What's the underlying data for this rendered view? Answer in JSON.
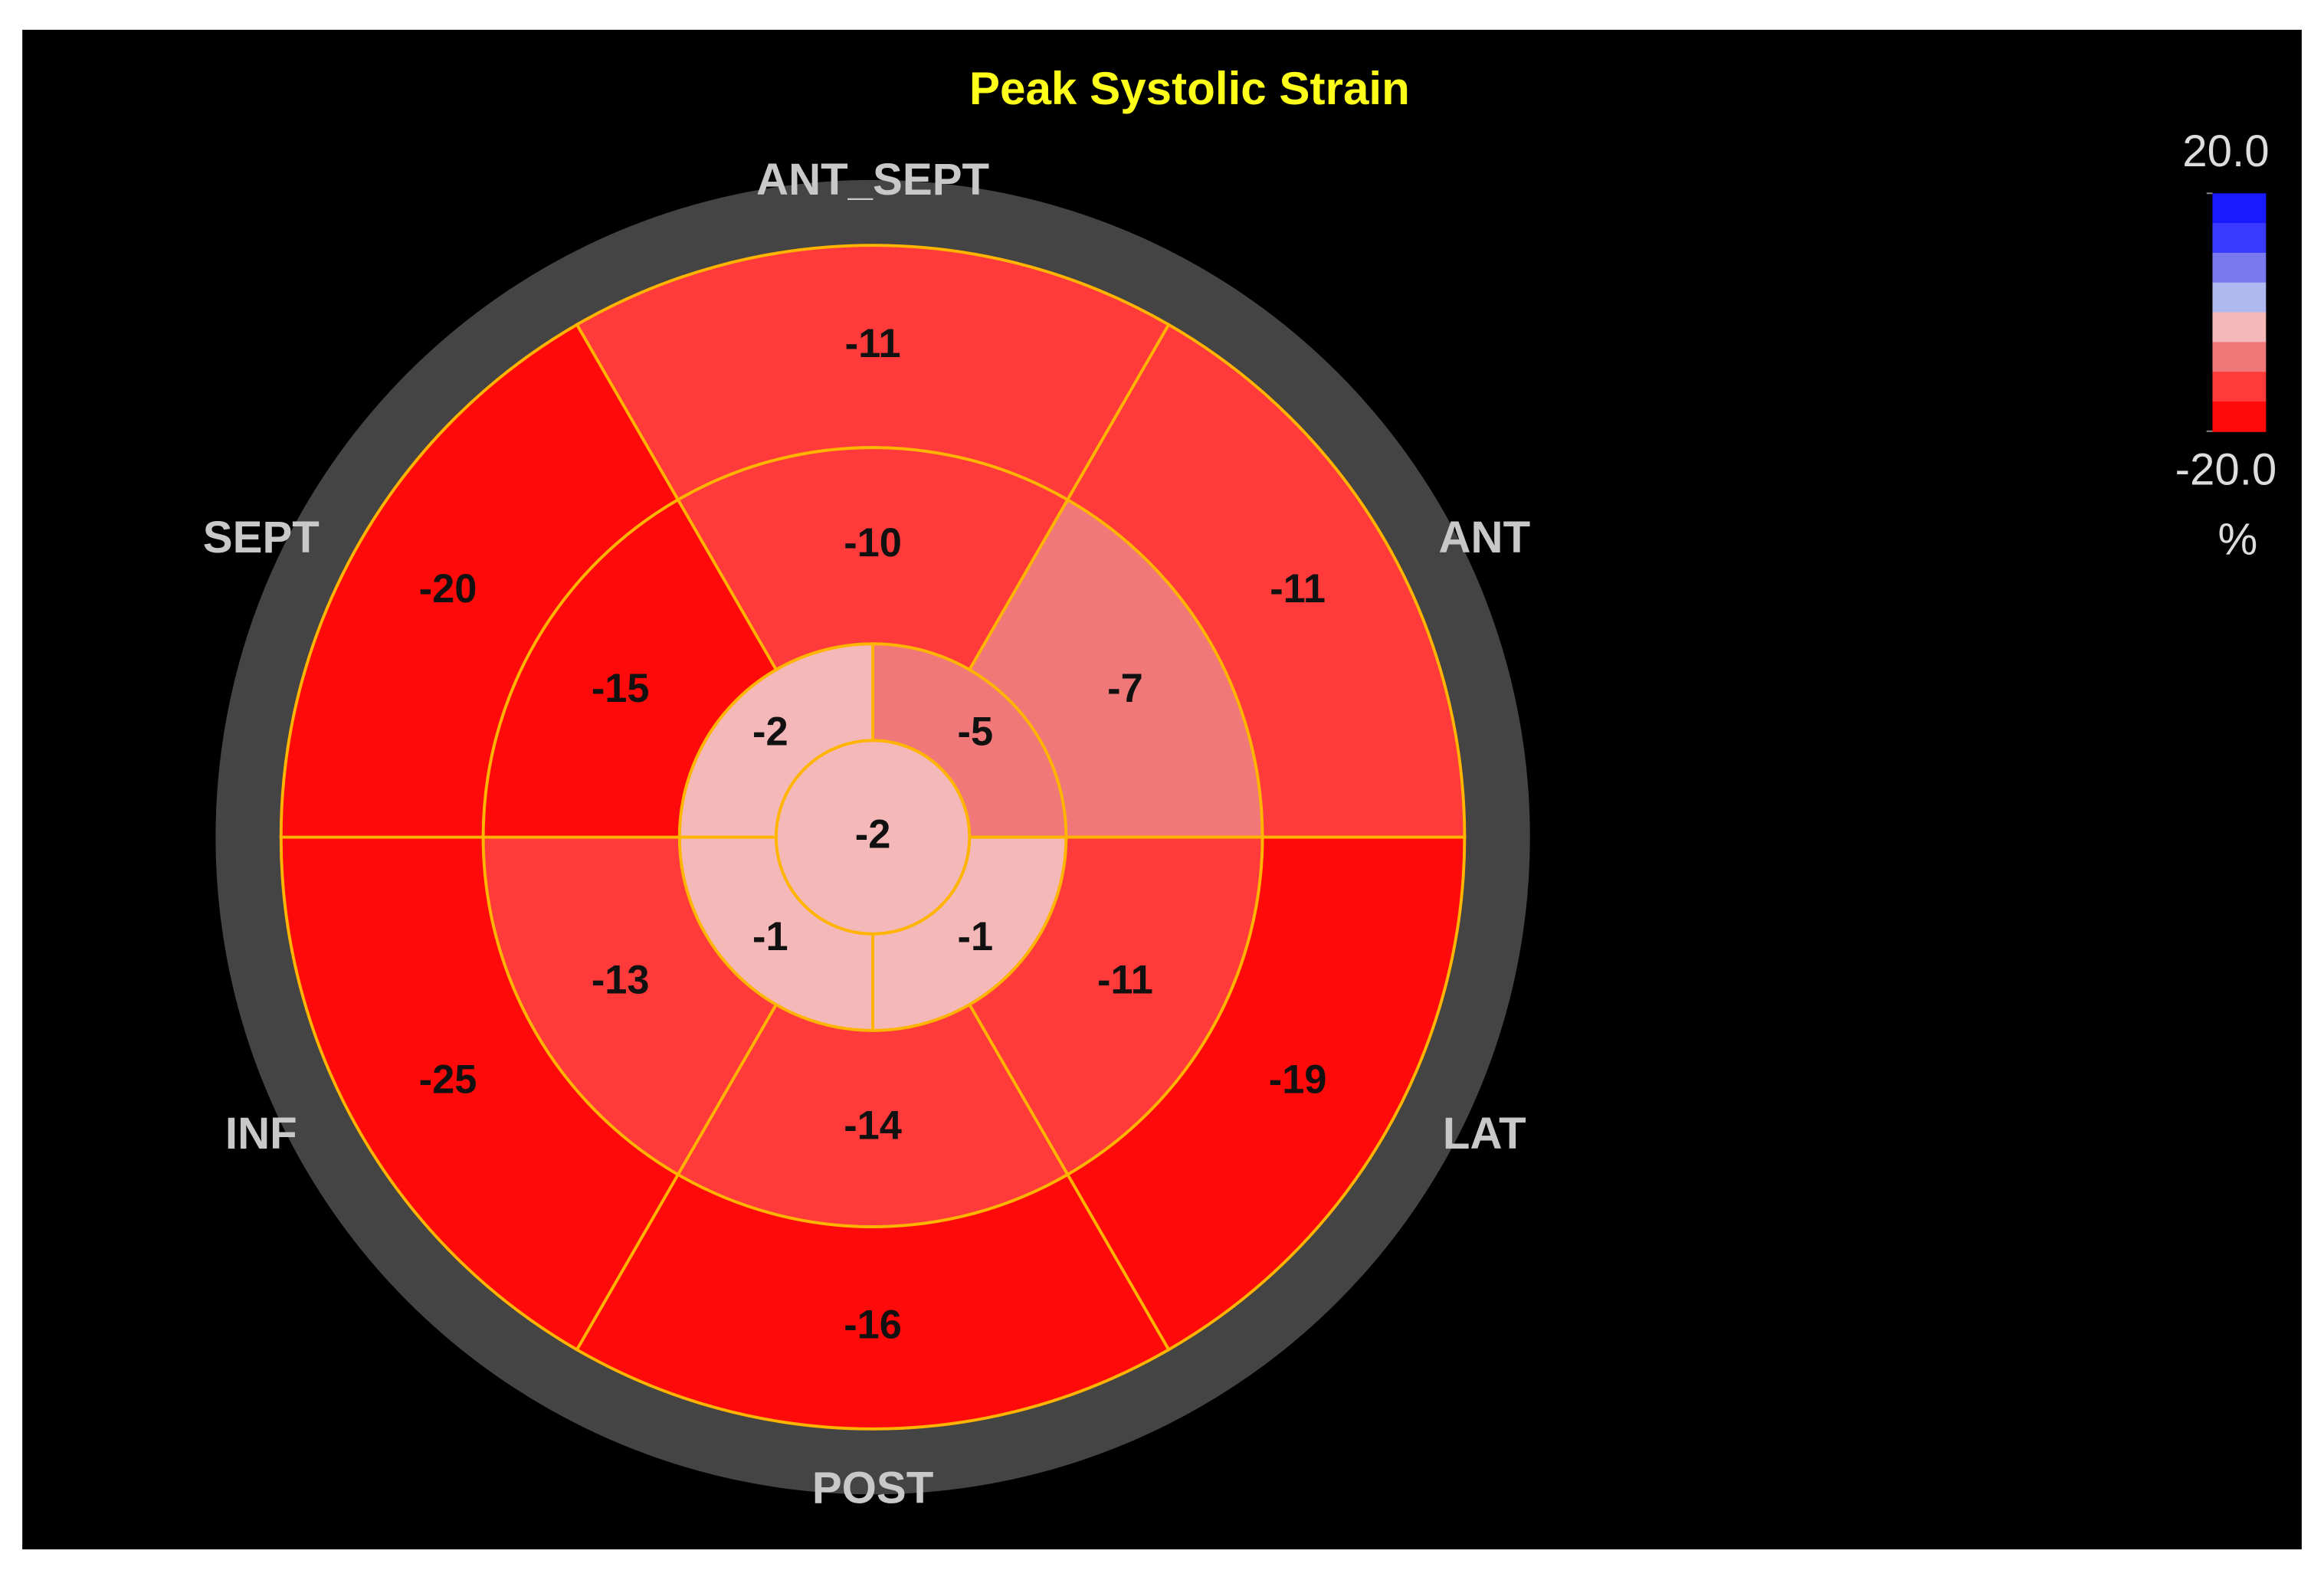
{
  "chart_data": {
    "type": "bullseye",
    "title": "Peak Systolic Strain",
    "segment_labels": [
      "ANT_SEPT",
      "ANT",
      "LAT",
      "POST",
      "INF",
      "SEPT"
    ],
    "basal": [
      -11,
      -11,
      -19,
      -16,
      -25,
      -20
    ],
    "mid": [
      -10,
      -7,
      -11,
      -14,
      -13,
      -15
    ],
    "apical": [
      -5,
      -1,
      -1,
      -2
    ],
    "apex": -2,
    "clim": [
      -20,
      20
    ],
    "cticks": [
      {
        "value": 20,
        "label": "20.0"
      },
      {
        "value": -20,
        "label": "-20.0"
      }
    ],
    "colorbar_label": "%",
    "colors": [
      "#1a1aff",
      "#3a3aff",
      "#7a7aee",
      "#b0b8f0",
      "#f5b8b8",
      "#f07878",
      "#ff3a3a",
      "#ff0a0a"
    ]
  }
}
